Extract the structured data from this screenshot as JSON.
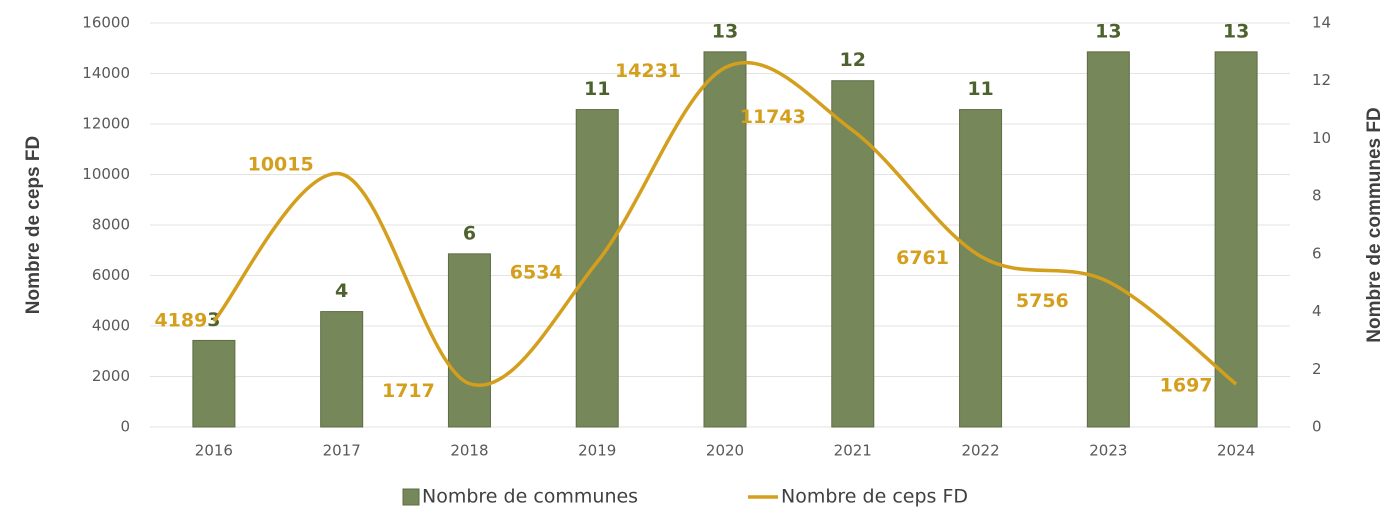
{
  "chart_data": {
    "type": "bar_line",
    "categories": [
      "2016",
      "2017",
      "2018",
      "2019",
      "2020",
      "2021",
      "2022",
      "2023",
      "2024"
    ],
    "series": [
      {
        "name": "Nombre de communes",
        "type": "bar",
        "axis": "y2",
        "color": "#76875a",
        "values": [
          3,
          4,
          6,
          11,
          13,
          12,
          11,
          13,
          13
        ]
      },
      {
        "name": "Nombre de ceps FD",
        "type": "line",
        "axis": "y",
        "color": "#d49f1c",
        "values": [
          4189,
          10015,
          1717,
          6534,
          14231,
          11743,
          6761,
          5756,
          1697
        ]
      }
    ],
    "ylabel": "Nombre de ceps FD",
    "y2label": "Nombre de communes FD",
    "ylim": [
      0,
      16000
    ],
    "yticks": [
      0,
      2000,
      4000,
      6000,
      8000,
      10000,
      12000,
      14000,
      16000
    ],
    "y2lim": [
      0,
      14
    ],
    "y2ticks": [
      0,
      2,
      4,
      6,
      8,
      10,
      12,
      14
    ],
    "grid": true,
    "legend": "bottom"
  }
}
